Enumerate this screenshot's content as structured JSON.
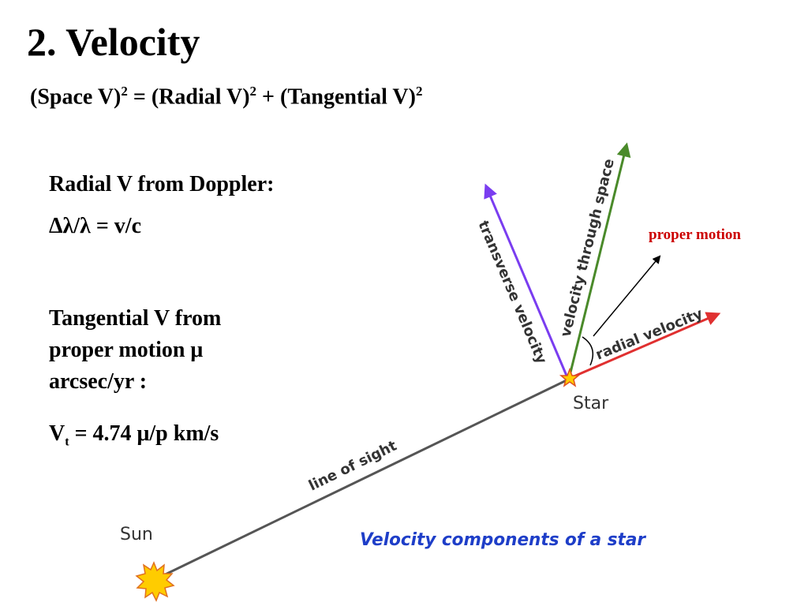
{
  "title": "2. Velocity",
  "formula": {
    "space": "(Space V)",
    "eq1": " = (Radial V)",
    "eq2": " + (Tangential V)",
    "exp": "2"
  },
  "radial": {
    "heading": "Radial V from Doppler:",
    "doppler": "Δλ/λ = v/c"
  },
  "tangential": {
    "line1": "Tangential V from",
    "line2": "proper motion μ",
    "line3": "arcsec/yr :",
    "vt_prefix": "V",
    "vt_sub": "t",
    "vt_rest": " = 4.74 μ/p km/s"
  },
  "diagram": {
    "proper_motion": "proper motion",
    "transverse": "transverse velocity",
    "space_velocity": "velocity through space",
    "radial_velocity": "radial velocity",
    "star": "Star",
    "sun": "Sun",
    "line_of_sight": "line of sight",
    "caption": "Velocity components of a star",
    "colors": {
      "transverse": "#7a3df0",
      "space": "#4a8a2a",
      "radial": "#e03030",
      "proper_motion": "#cc0000",
      "caption": "#1e3ec8"
    }
  }
}
